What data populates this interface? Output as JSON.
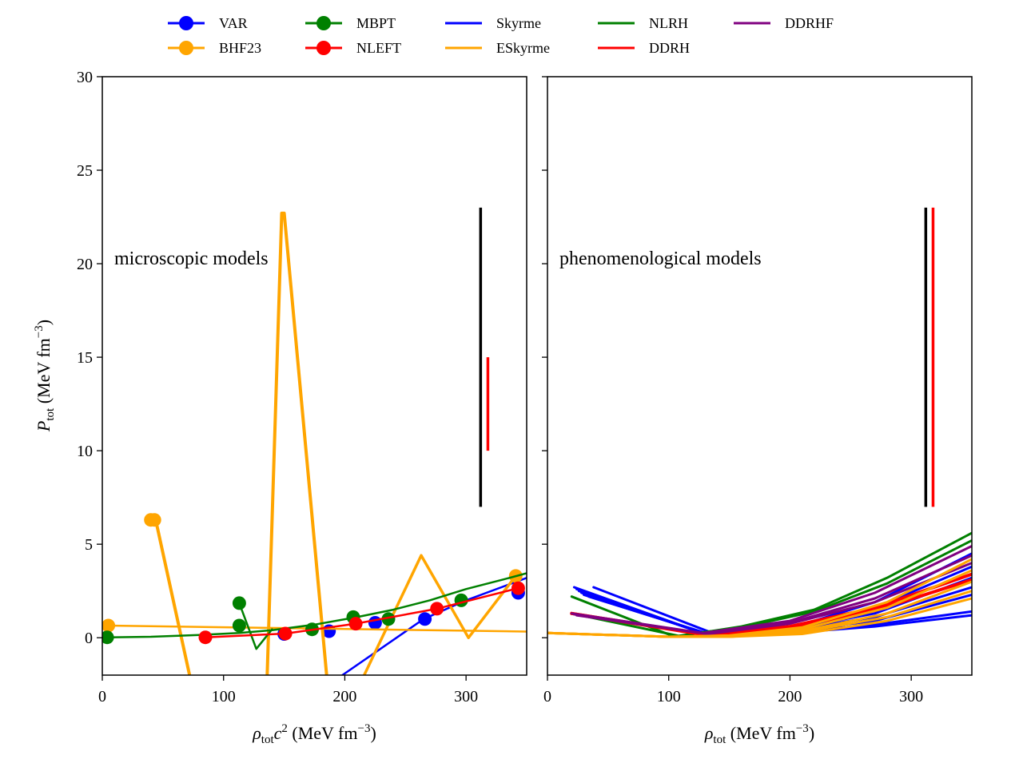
{
  "chart_data": {
    "type": "line",
    "shared_y": {
      "ylim": [
        -2,
        30
      ],
      "yticks": [
        0,
        5,
        10,
        15,
        20,
        25,
        30
      ],
      "ylabel_main": "P",
      "ylabel_sub": "tot",
      "ylabel_units": " (MeV fm",
      "ylabel_exp": "−3",
      "ylabel_close": ")"
    },
    "legend": {
      "placement": "top-center",
      "entries": [
        {
          "name": "VAR",
          "color": "#0000ff",
          "marker": true
        },
        {
          "name": "BHF23",
          "color": "#ffa500",
          "marker": true
        },
        {
          "name": "MBPT",
          "color": "#008000",
          "marker": true
        },
        {
          "name": "NLEFT",
          "color": "#ff0000",
          "marker": true
        },
        {
          "name": "Skyrme",
          "color": "#0000ff",
          "marker": false
        },
        {
          "name": "ESkyrme",
          "color": "#ffa500",
          "marker": false
        },
        {
          "name": "NLRH",
          "color": "#008000",
          "marker": false
        },
        {
          "name": "DDRH",
          "color": "#ff0000",
          "marker": false
        },
        {
          "name": "DDRHF",
          "color": "#800080",
          "marker": false
        }
      ]
    },
    "panels": [
      {
        "id": "left",
        "annotation": "microscopic models",
        "xlim": [
          0,
          350
        ],
        "xticks": [
          0,
          100,
          200,
          300
        ],
        "xlabel_main": "ρ",
        "xlabel_sub": "tot",
        "xlabel_mid": "c",
        "xlabel_sup": "2",
        "xlabel_units": " (MeV fm",
        "xlabel_exp": "−3",
        "xlabel_close": ")",
        "vlines": [
          {
            "x": 312,
            "y0": 7,
            "y1": 23,
            "color": "#000000"
          },
          {
            "x": 318,
            "y0": 10,
            "y1": 15,
            "color": "#ff0000"
          }
        ],
        "series": [
          {
            "name": "VAR",
            "color": "#0000ff",
            "marker": true,
            "width": 2.5,
            "x": [
              150,
              187,
              225,
              266,
              343
            ],
            "y": [
              0.2,
              0.35,
              0.8,
              1.0,
              2.4
            ],
            "show_line": false
          },
          {
            "name": "VAR",
            "color": "#0000ff",
            "marker": false,
            "width": 2.5,
            "x": [
              198,
              265,
              300,
              350
            ],
            "y": [
              -2.0,
              1.0,
              2.0,
              3.2
            ]
          },
          {
            "name": "BHF23",
            "color": "#ffa500",
            "marker": true,
            "width": 3,
            "x": [
              5,
              40,
              43,
              341
            ],
            "y": [
              0.65,
              6.3,
              6.3,
              3.3
            ],
            "show_line": false
          },
          {
            "name": "BHF23",
            "color": "#ffa500",
            "marker": false,
            "width": 4,
            "x": [
              40,
              44,
              72
            ],
            "y": [
              6.3,
              6.3,
              -2.0
            ]
          },
          {
            "name": "BHF23",
            "color": "#ffa500",
            "marker": false,
            "width": 4,
            "x": [
              136,
              148,
              150,
              185
            ],
            "y": [
              -2.0,
              22.7,
              22.7,
              -2.0
            ]
          },
          {
            "name": "BHF23",
            "color": "#ffa500",
            "marker": false,
            "width": 3.5,
            "x": [
              216,
              263,
              302,
              341
            ],
            "y": [
              -2.0,
              4.4,
              0.0,
              3.3
            ]
          },
          {
            "name": "BHF23",
            "color": "#ffa500",
            "marker": false,
            "width": 2.5,
            "x": [
              5,
              350
            ],
            "y": [
              0.65,
              0.33
            ]
          },
          {
            "name": "MBPT",
            "color": "#008000",
            "marker": true,
            "width": 2.5,
            "x": [
              4,
              113,
              113,
              173,
              207,
              236,
              296
            ],
            "y": [
              0.02,
              1.85,
              0.65,
              0.45,
              1.1,
              1.0,
              2.0
            ],
            "show_line": false
          },
          {
            "name": "MBPT",
            "color": "#008000",
            "marker": false,
            "width": 2.5,
            "x": [
              4,
              40,
              80,
              113,
              140,
              175,
              210,
              240,
              270,
              300,
              330,
              350
            ],
            "y": [
              0.02,
              0.05,
              0.15,
              0.25,
              0.4,
              0.7,
              1.1,
              1.5,
              2.0,
              2.6,
              3.1,
              3.45
            ]
          },
          {
            "name": "MBPT",
            "color": "#008000",
            "marker": false,
            "width": 2.5,
            "x": [
              113,
              127,
              140
            ],
            "y": [
              1.85,
              -0.6,
              0.45
            ]
          },
          {
            "name": "NLEFT",
            "color": "#ff0000",
            "marker": true,
            "width": 2.5,
            "x": [
              85,
              151,
              209,
              276,
              343
            ],
            "y": [
              0.02,
              0.22,
              0.75,
              1.55,
              2.65
            ],
            "show_line": true
          }
        ]
      },
      {
        "id": "right",
        "annotation": "phenomenological models",
        "xlim": [
          0,
          350
        ],
        "xticks": [
          0,
          100,
          200,
          300
        ],
        "xlabel_main": "ρ",
        "xlabel_sub": "tot",
        "xlabel_mid": "",
        "xlabel_sup": "",
        "xlabel_units": " (MeV fm",
        "xlabel_exp": "−3",
        "xlabel_close": ")",
        "vlines": [
          {
            "x": 312,
            "y0": 7,
            "y1": 23,
            "color": "#000000"
          },
          {
            "x": 318,
            "y0": 7,
            "y1": 23,
            "color": "#ff0000"
          }
        ],
        "series": [
          {
            "name": "Skyrme",
            "color": "#0000ff",
            "width": 3,
            "x": [
              22,
              130,
              200,
              270,
              350
            ],
            "y": [
              2.7,
              0.2,
              0.55,
              1.6,
              3.8
            ]
          },
          {
            "name": "Skyrme",
            "color": "#0000ff",
            "width": 3,
            "x": [
              24,
              132,
              200,
              270,
              350
            ],
            "y": [
              2.6,
              0.15,
              0.45,
              1.3,
              3.2
            ]
          },
          {
            "name": "Skyrme",
            "color": "#0000ff",
            "width": 3,
            "x": [
              26,
              134,
              200,
              270,
              350
            ],
            "y": [
              2.5,
              0.12,
              0.4,
              1.1,
              2.7
            ]
          },
          {
            "name": "Skyrme",
            "color": "#0000ff",
            "width": 3,
            "x": [
              28,
              136,
              200,
              270,
              350
            ],
            "y": [
              2.4,
              0.1,
              0.35,
              0.9,
              2.3
            ]
          },
          {
            "name": "Skyrme",
            "color": "#0000ff",
            "width": 3,
            "x": [
              30,
              138,
              200,
              270,
              350
            ],
            "y": [
              2.3,
              0.08,
              0.3,
              0.7,
              1.4
            ]
          },
          {
            "name": "Skyrme",
            "color": "#0000ff",
            "width": 3,
            "x": [
              34,
              140,
              200,
              270,
              350
            ],
            "y": [
              2.2,
              0.06,
              0.25,
              0.6,
              1.2
            ]
          },
          {
            "name": "Skyrme",
            "color": "#0000ff",
            "width": 3,
            "x": [
              38,
              142,
              200,
              270,
              350
            ],
            "y": [
              2.7,
              0.1,
              0.5,
              1.9,
              4.5
            ]
          },
          {
            "name": "NLRH",
            "color": "#008000",
            "width": 3,
            "x": [
              20,
              105,
              160,
              220,
              280,
              350
            ],
            "y": [
              2.2,
              0.05,
              0.6,
              1.5,
              3.2,
              5.6
            ]
          },
          {
            "name": "NLRH",
            "color": "#008000",
            "width": 3,
            "x": [
              20,
              108,
              160,
              220,
              280,
              350
            ],
            "y": [
              1.3,
              0.1,
              0.55,
              1.4,
              2.9,
              5.2
            ]
          },
          {
            "name": "DDRH",
            "color": "#ff0000",
            "width": 4,
            "x": [
              20,
              130,
              200,
              270,
              350
            ],
            "y": [
              1.3,
              0.15,
              0.6,
              1.6,
              3.4
            ]
          },
          {
            "name": "DDRH",
            "color": "#ff0000",
            "width": 4,
            "x": [
              20,
              132,
              200,
              270,
              350
            ],
            "y": [
              1.3,
              0.15,
              0.55,
              1.45,
              3.1
            ]
          },
          {
            "name": "DDRHF",
            "color": "#800080",
            "width": 3,
            "x": [
              20,
              128,
              200,
              270,
              350
            ],
            "y": [
              1.3,
              0.25,
              0.9,
              2.4,
              4.9
            ]
          },
          {
            "name": "DDRHF",
            "color": "#800080",
            "width": 3,
            "x": [
              22,
              130,
              200,
              270,
              350
            ],
            "y": [
              1.25,
              0.22,
              0.8,
              2.1,
              4.4
            ]
          },
          {
            "name": "DDRHF",
            "color": "#800080",
            "width": 3,
            "x": [
              24,
              132,
              200,
              270,
              350
            ],
            "y": [
              1.2,
              0.2,
              0.75,
              1.9,
              4.0
            ]
          },
          {
            "name": "ESkyrme",
            "color": "#ffa500",
            "width": 3,
            "x": [
              0,
              100,
              150,
              210,
              280,
              350
            ],
            "y": [
              0.25,
              0.05,
              0.05,
              0.35,
              1.3,
              3.0
            ]
          },
          {
            "name": "ESkyrme",
            "color": "#ffa500",
            "width": 3,
            "x": [
              0,
              100,
              150,
              210,
              280,
              350
            ],
            "y": [
              0.25,
              0.05,
              0.05,
              0.3,
              1.1,
              2.5
            ]
          },
          {
            "name": "ESkyrme",
            "color": "#ffa500",
            "width": 3,
            "x": [
              0,
              100,
              150,
              210,
              280,
              350
            ],
            "y": [
              0.25,
              0.05,
              0.1,
              0.45,
              1.6,
              3.6
            ]
          },
          {
            "name": "ESkyrme",
            "color": "#ffa500",
            "width": 3,
            "x": [
              0,
              100,
              150,
              210,
              280,
              350
            ],
            "y": [
              0.25,
              0.05,
              0.05,
              0.2,
              0.9,
              2.1
            ]
          },
          {
            "name": "ESkyrme",
            "color": "#ffa500",
            "width": 3,
            "x": [
              0,
              100,
              150,
              210,
              280,
              350
            ],
            "y": [
              0.25,
              0.05,
              0.12,
              0.55,
              1.9,
              4.2
            ]
          }
        ]
      }
    ]
  }
}
